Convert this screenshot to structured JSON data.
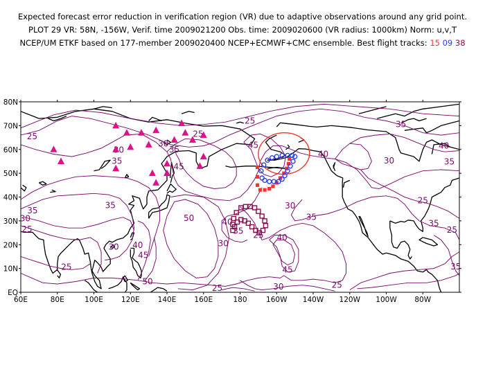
{
  "header": {
    "line1": "Expected forecast error reduction in verification region (VR) due to adaptive observations around any grid point.",
    "line2": "PLOT 29 VR: 58N, -156W, Verif. time 2009021200 Obs. time: 2009020600 (VR radius: 1000km) Norm: u,v,T",
    "line3_prefix": "NCEP/UM ETKF based on 177-member 2009020400 NCEP+ECMWF+CMC ensemble. Best flight tracks:",
    "tracks": [
      {
        "label": "15",
        "color": "#ff3030"
      },
      {
        "label": "09",
        "color": "#2a3cff"
      },
      {
        "label": "38",
        "color": "#8a0a4e"
      }
    ]
  },
  "map": {
    "lat_labels": [
      "80N",
      "70N",
      "60N",
      "50N",
      "40N",
      "30N",
      "20N",
      "10N",
      "EQ"
    ],
    "lon_labels": [
      "60E",
      "80E",
      "100E",
      "120E",
      "140E",
      "160E",
      "180",
      "160W",
      "140W",
      "120W",
      "100W",
      "80W"
    ],
    "contour_color": "#7a0a6e",
    "vr_circle_color": "#e83a2a",
    "contour_labels": [
      {
        "text": "25",
        "lon": 185.4,
        "lat": 72.0
      },
      {
        "text": "25",
        "lon": 66.2,
        "lat": 65.5
      },
      {
        "text": "30",
        "lon": 113.6,
        "lat": 59.8
      },
      {
        "text": "35",
        "lon": 112.6,
        "lat": 55.2
      },
      {
        "text": "30",
        "lon": 138.0,
        "lat": 62.4
      },
      {
        "text": "35",
        "lon": 144.0,
        "lat": 60.0
      },
      {
        "text": "45",
        "lon": 146.5,
        "lat": 52.8
      },
      {
        "text": "25",
        "lon": 157.0,
        "lat": 66.5
      },
      {
        "text": "45",
        "lon": 187.2,
        "lat": 61.8
      },
      {
        "text": "40",
        "lon": 225.5,
        "lat": 58.0
      },
      {
        "text": "35",
        "lon": 268.0,
        "lat": 70.5
      },
      {
        "text": "40",
        "lon": 291.5,
        "lat": 61.5
      },
      {
        "text": "35",
        "lon": 294.5,
        "lat": 54.8
      },
      {
        "text": "30",
        "lon": 261.5,
        "lat": 55.3
      },
      {
        "text": "35",
        "lon": 66.4,
        "lat": 34.3
      },
      {
        "text": "30",
        "lon": 62.4,
        "lat": 31.0
      },
      {
        "text": "25",
        "lon": 63.4,
        "lat": 26.5
      },
      {
        "text": "35",
        "lon": 109.0,
        "lat": 36.5
      },
      {
        "text": "50",
        "lon": 152.0,
        "lat": 31.2
      },
      {
        "text": "30",
        "lon": 207.4,
        "lat": 36.3
      },
      {
        "text": "35",
        "lon": 219.0,
        "lat": 31.5
      },
      {
        "text": "25",
        "lon": 280.0,
        "lat": 38.5
      },
      {
        "text": "25",
        "lon": 296.0,
        "lat": 26.2
      },
      {
        "text": "35",
        "lon": 286.0,
        "lat": 29.0
      },
      {
        "text": "30",
        "lon": 110.8,
        "lat": 19.0
      },
      {
        "text": "25",
        "lon": 85.0,
        "lat": 10.6
      },
      {
        "text": "40",
        "lon": 124.0,
        "lat": 19.8
      },
      {
        "text": "45",
        "lon": 127.0,
        "lat": 15.5
      },
      {
        "text": "50",
        "lon": 129.4,
        "lat": 4.5
      },
      {
        "text": "30",
        "lon": 170.8,
        "lat": 20.5
      },
      {
        "text": "35",
        "lon": 179.0,
        "lat": 25.8
      },
      {
        "text": "25",
        "lon": 190.0,
        "lat": 24.0
      },
      {
        "text": "40",
        "lon": 203.0,
        "lat": 23.0
      },
      {
        "text": "45",
        "lon": 206.0,
        "lat": 9.5
      },
      {
        "text": "30",
        "lon": 201.0,
        "lat": 2.3
      },
      {
        "text": "25",
        "lon": 167.5,
        "lat": 1.8
      },
      {
        "text": "25",
        "lon": 233.0,
        "lat": 3.0
      },
      {
        "text": "35",
        "lon": 298.0,
        "lat": 10.8
      },
      {
        "text": "40",
        "lon": 173.0,
        "lat": 29.5
      }
    ],
    "triangle_obs": [
      {
        "lon": 78,
        "lat": 60
      },
      {
        "lon": 82,
        "lat": 55
      },
      {
        "lon": 112,
        "lat": 70
      },
      {
        "lon": 112,
        "lat": 60
      },
      {
        "lon": 112,
        "lat": 52
      },
      {
        "lon": 118,
        "lat": 67
      },
      {
        "lon": 120,
        "lat": 61
      },
      {
        "lon": 126,
        "lat": 67
      },
      {
        "lon": 130,
        "lat": 62
      },
      {
        "lon": 134,
        "lat": 68
      },
      {
        "lon": 132,
        "lat": 50
      },
      {
        "lon": 134,
        "lat": 46
      },
      {
        "lon": 140,
        "lat": 54
      },
      {
        "lon": 140,
        "lat": 50
      },
      {
        "lon": 144,
        "lat": 64
      },
      {
        "lon": 148,
        "lat": 71
      },
      {
        "lon": 150,
        "lat": 67
      },
      {
        "lon": 154,
        "lat": 64
      },
      {
        "lon": 158,
        "lat": 53
      },
      {
        "lon": 160,
        "lat": 57
      },
      {
        "lon": 160,
        "lat": 66
      }
    ],
    "tracks": {
      "15": [
        [
          189.5,
          52.5
        ],
        [
          189.5,
          48.5
        ],
        [
          189.5,
          45
        ],
        [
          191,
          43
        ],
        [
          193.5,
          43
        ],
        [
          196,
          43.5
        ],
        [
          198,
          44.5
        ],
        [
          200,
          46
        ],
        [
          202,
          48
        ],
        [
          204,
          50
        ],
        [
          205.5,
          52
        ],
        [
          206.5,
          54
        ],
        [
          207,
          56
        ]
      ],
      "09": [
        [
          191.5,
          51
        ],
        [
          193,
          53.5
        ],
        [
          195,
          55.5
        ],
        [
          197.5,
          56.5
        ],
        [
          200,
          57
        ],
        [
          203,
          57.5
        ],
        [
          206,
          57.5
        ],
        [
          208.5,
          57.5
        ],
        [
          210,
          57
        ],
        [
          209,
          55
        ],
        [
          207.5,
          53
        ],
        [
          206,
          51
        ],
        [
          204.5,
          49
        ],
        [
          203,
          47.5
        ],
        [
          201,
          46.5
        ],
        [
          198.5,
          46.5
        ],
        [
          196,
          46.5
        ],
        [
          193.5,
          47
        ],
        [
          192,
          48
        ]
      ],
      "38": [
        [
          176,
          26
        ],
        [
          176,
          28.5
        ],
        [
          176.5,
          31
        ],
        [
          178,
          33.5
        ],
        [
          180.5,
          35.5
        ],
        [
          183,
          36
        ],
        [
          185.5,
          36
        ],
        [
          188,
          35.5
        ],
        [
          190,
          34
        ],
        [
          192,
          32
        ],
        [
          193.5,
          30
        ],
        [
          194,
          28
        ],
        [
          192.5,
          26
        ],
        [
          190.5,
          25
        ],
        [
          188.5,
          26
        ],
        [
          186.5,
          27.5
        ],
        [
          184.5,
          29
        ],
        [
          182.5,
          30
        ],
        [
          180.5,
          30.5
        ],
        [
          178.5,
          29.5
        ],
        [
          177,
          27.5
        ]
      ]
    }
  }
}
